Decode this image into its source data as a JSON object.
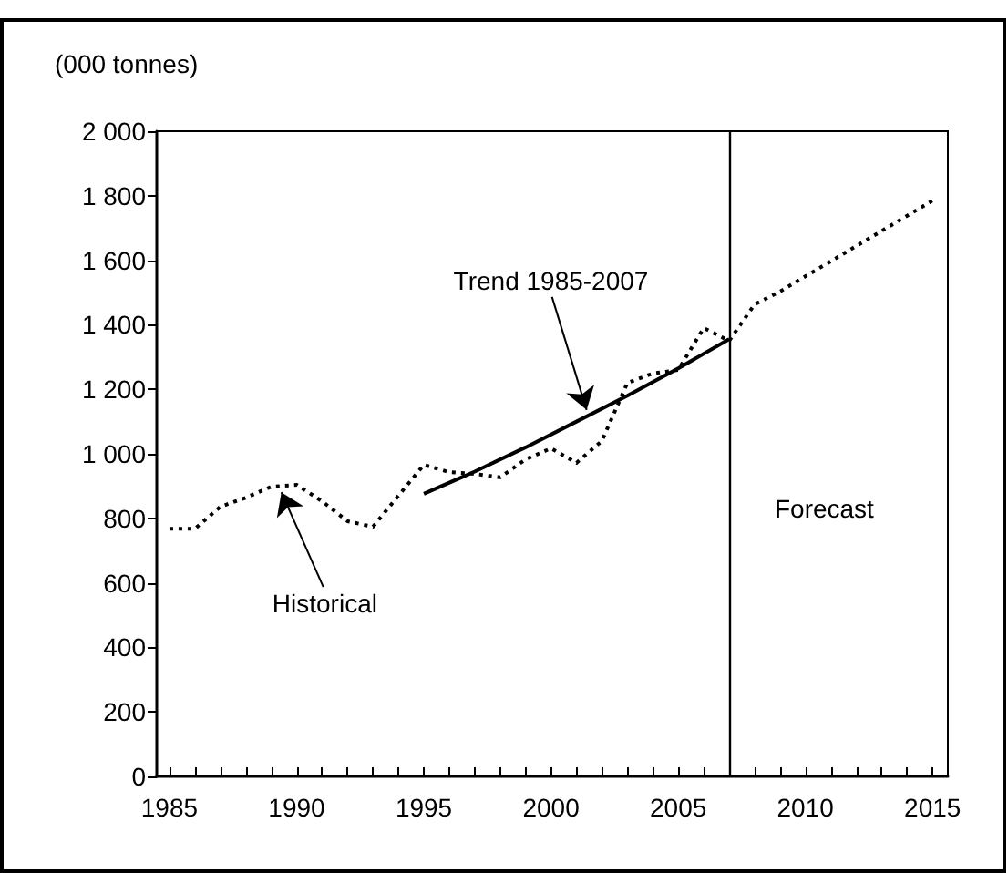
{
  "chart_data": {
    "type": "line",
    "ylabel": "(000 tonnes)",
    "xlim": [
      1984.5,
      2015.6
    ],
    "ylim": [
      0,
      2000
    ],
    "xticks": [
      1985,
      {
        "value": 1986,
        "label": null
      },
      {
        "value": 1987,
        "label": null
      },
      {
        "value": 1988,
        "label": null
      },
      {
        "value": 1989,
        "label": null
      },
      1990,
      {
        "value": 1991,
        "label": null
      },
      {
        "value": 1992,
        "label": null
      },
      {
        "value": 1993,
        "label": null
      },
      {
        "value": 1994,
        "label": null
      },
      1995,
      {
        "value": 1996,
        "label": null
      },
      {
        "value": 1997,
        "label": null
      },
      {
        "value": 1998,
        "label": null
      },
      {
        "value": 1999,
        "label": null
      },
      2000,
      {
        "value": 2001,
        "label": null
      },
      {
        "value": 2002,
        "label": null
      },
      {
        "value": 2003,
        "label": null
      },
      {
        "value": 2004,
        "label": null
      },
      2005,
      {
        "value": 2006,
        "label": null
      },
      {
        "value": 2007,
        "label": null
      },
      {
        "value": 2008,
        "label": null
      },
      {
        "value": 2009,
        "label": null
      },
      2010,
      {
        "value": 2011,
        "label": null
      },
      {
        "value": 2012,
        "label": null
      },
      {
        "value": 2013,
        "label": null
      },
      {
        "value": 2014,
        "label": null
      },
      2015
    ],
    "yticks": [
      0,
      200,
      400,
      600,
      800,
      {
        "value": 1000,
        "label": "1 000"
      },
      {
        "value": 1200,
        "label": "1 200"
      },
      {
        "value": 1400,
        "label": "1 400"
      },
      {
        "value": 1600,
        "label": "1 600"
      },
      {
        "value": 1800,
        "label": "1 800"
      },
      {
        "value": 2000,
        "label": "2 000"
      }
    ],
    "series": [
      {
        "color": "#000000",
        "line_style": "dotted",
        "x": [
          1985,
          1986,
          1987,
          1988,
          1989,
          1990,
          1991,
          1992,
          1993,
          1994,
          1995,
          1996,
          1997,
          1998,
          1999,
          2000,
          2001,
          2002,
          2003,
          2004,
          2005,
          2006,
          2007,
          2008,
          2009,
          2010,
          2011,
          2012,
          2013,
          2014,
          2015
        ],
        "values": [
          768,
          768,
          836,
          864,
          898,
          904,
          853,
          791,
          774,
          870,
          966,
          943,
          938,
          927,
          983,
          1017,
          972,
          1040,
          1220,
          1249,
          1260,
          1390,
          1350,
          1463,
          1503,
          1550,
          1597,
          1644,
          1691,
          1738,
          1785
        ]
      },
      {
        "color": "#000000",
        "line_style": "solid",
        "x": [
          1995,
          1997,
          1999,
          2001,
          2003,
          2005,
          2007
        ],
        "values": [
          876,
          945,
          1020,
          1100,
          1180,
          1265,
          1355
        ]
      }
    ],
    "ref_lines": [
      {
        "axis": "x",
        "value": 2007,
        "label": "Forecast",
        "color": "#000000"
      }
    ],
    "annotations": [
      {
        "text": "Historical",
        "x": 1989.4,
        "y": 881
      },
      {
        "text": "Trend 1985-2007",
        "x": 2001.4,
        "y": 1136
      }
    ],
    "grid": false,
    "marker": "none"
  }
}
